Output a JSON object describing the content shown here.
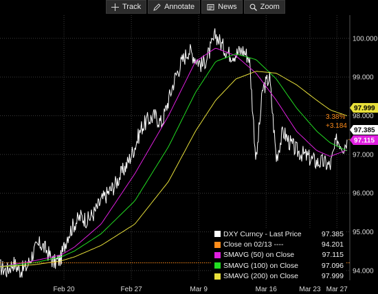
{
  "toolbar": {
    "buttons": [
      {
        "label": "Track",
        "icon": "crosshair-icon"
      },
      {
        "label": "Annotate",
        "icon": "pencil-icon"
      },
      {
        "label": "News",
        "icon": "news-icon"
      },
      {
        "label": "Zoom",
        "icon": "magnifier-icon"
      }
    ]
  },
  "chart_data": {
    "type": "line",
    "x_ticks": [
      "Feb 20",
      "Feb 27",
      "Mar 9",
      "Mar 16",
      "Mar 23",
      "Mar 27"
    ],
    "y_ticks": [
      94.0,
      95.0,
      96.0,
      97.0,
      98.0,
      99.0,
      100.0
    ],
    "y_tick_labels": [
      "94.000",
      "95.000",
      "96.000",
      "97.000",
      "98.000",
      "99.000",
      "100.000"
    ],
    "ylim": [
      93.75,
      100.6
    ],
    "grid": true,
    "legend_position": "bottom-right",
    "series": [
      {
        "name": "DXY Curncy - Last Price",
        "last": "97.385",
        "color": "#ffffff",
        "points": [
          [
            0,
            94.1
          ],
          [
            2,
            94.0
          ],
          [
            4,
            94.2
          ],
          [
            6,
            94.0
          ],
          [
            8,
            94.1
          ],
          [
            10,
            94.5
          ],
          [
            12,
            94.7
          ],
          [
            14,
            94.5
          ],
          [
            16,
            94.2
          ],
          [
            18,
            94.3
          ],
          [
            20,
            94.9
          ],
          [
            22,
            95.2
          ],
          [
            24,
            95.4
          ],
          [
            26,
            95.3
          ],
          [
            28,
            95.5
          ],
          [
            30,
            95.8
          ],
          [
            32,
            96.0
          ],
          [
            34,
            96.2
          ],
          [
            36,
            96.5
          ],
          [
            38,
            96.8
          ],
          [
            40,
            97.2
          ],
          [
            42,
            97.7
          ],
          [
            44,
            97.9
          ],
          [
            46,
            98.0
          ],
          [
            48,
            97.8
          ],
          [
            50,
            98.4
          ],
          [
            52,
            99.0
          ],
          [
            54,
            99.4
          ],
          [
            56,
            99.7
          ],
          [
            58,
            99.5
          ],
          [
            60,
            99.3
          ],
          [
            62,
            99.6
          ],
          [
            64,
            100.1
          ],
          [
            66,
            99.8
          ],
          [
            68,
            99.6
          ],
          [
            70,
            99.6
          ],
          [
            72,
            99.7
          ],
          [
            74,
            99.5
          ],
          [
            76,
            96.8
          ],
          [
            78,
            98.7
          ],
          [
            80,
            99.0
          ],
          [
            82,
            96.9
          ],
          [
            84,
            97.6
          ],
          [
            86,
            97.3
          ],
          [
            88,
            97.1
          ],
          [
            90,
            97.0
          ],
          [
            92,
            96.9
          ],
          [
            94,
            96.8
          ],
          [
            96,
            96.8
          ],
          [
            98,
            96.7
          ],
          [
            100,
            97.4
          ],
          [
            102,
            97.2
          ],
          [
            103,
            97.385
          ]
        ]
      },
      {
        "name": "SMAVG (50) on Close",
        "last": "97.115",
        "color": "#e01fe0",
        "points": [
          [
            0,
            94.1
          ],
          [
            10,
            94.25
          ],
          [
            18,
            94.4
          ],
          [
            22,
            94.6
          ],
          [
            30,
            95.2
          ],
          [
            40,
            96.5
          ],
          [
            50,
            98.0
          ],
          [
            58,
            99.4
          ],
          [
            64,
            99.75
          ],
          [
            70,
            99.55
          ],
          [
            76,
            99.1
          ],
          [
            82,
            98.4
          ],
          [
            88,
            97.6
          ],
          [
            94,
            97.1
          ],
          [
            98,
            96.95
          ],
          [
            103,
            97.115
          ]
        ]
      },
      {
        "name": "SMAVG (100) on Close",
        "last": "97.096",
        "color": "#22dd22",
        "points": [
          [
            0,
            94.1
          ],
          [
            10,
            94.2
          ],
          [
            18,
            94.35
          ],
          [
            22,
            94.5
          ],
          [
            30,
            94.95
          ],
          [
            40,
            95.8
          ],
          [
            50,
            97.2
          ],
          [
            58,
            98.6
          ],
          [
            64,
            99.4
          ],
          [
            70,
            99.6
          ],
          [
            76,
            99.45
          ],
          [
            82,
            98.95
          ],
          [
            88,
            98.2
          ],
          [
            94,
            97.6
          ],
          [
            98,
            97.3
          ],
          [
            103,
            97.096
          ]
        ]
      },
      {
        "name": "SMAVG (200) on Close",
        "last": "97.999",
        "color": "#e8e03a",
        "points": [
          [
            0,
            94.1
          ],
          [
            10,
            94.15
          ],
          [
            18,
            94.25
          ],
          [
            22,
            94.35
          ],
          [
            30,
            94.65
          ],
          [
            40,
            95.2
          ],
          [
            50,
            96.3
          ],
          [
            58,
            97.6
          ],
          [
            64,
            98.4
          ],
          [
            70,
            98.95
          ],
          [
            76,
            99.15
          ],
          [
            82,
            99.1
          ],
          [
            88,
            98.8
          ],
          [
            94,
            98.4
          ],
          [
            98,
            98.15
          ],
          [
            103,
            97.999
          ]
        ]
      },
      {
        "name": "Close on 02/13 ----",
        "last": "94.201",
        "color": "#ff8c1a",
        "constant": 94.201
      }
    ],
    "annotations": [
      {
        "text": "3.38%",
        "color": "#ff8c1a"
      },
      {
        "text": "+3.184",
        "color": "#ff8c1a"
      }
    ]
  },
  "legend": [
    {
      "label": "DXY Curncy - Last Price",
      "value": "97.385",
      "color": "#ffffff"
    },
    {
      "label": "Close on 02/13 ----",
      "value": "94.201",
      "color": "#ff8c1a"
    },
    {
      "label": "SMAVG (50) on Close",
      "value": "97.115",
      "color": "#e01fe0"
    },
    {
      "label": "SMAVG (100) on Close",
      "value": "97.096",
      "color": "#22dd22"
    },
    {
      "label": "SMAVG (200) on Close",
      "value": "97.999",
      "color": "#e8e03a"
    }
  ]
}
